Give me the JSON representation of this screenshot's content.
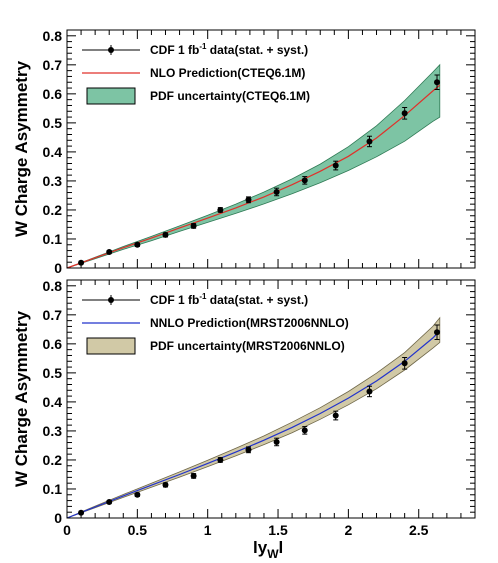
{
  "chart_data": [
    {
      "type": "line",
      "panel": "top",
      "ylabel": "W Charge Asymmetry",
      "xlim": [
        0,
        2.9
      ],
      "ylim": [
        0,
        0.82
      ],
      "x_ticks": [
        "0",
        "0.5",
        "1",
        "1.5",
        "2",
        "2.5"
      ],
      "x_tick_values": [
        0,
        0.5,
        1,
        1.5,
        2,
        2.5
      ],
      "y_ticks": [
        "0",
        "0.1",
        "0.2",
        "0.3",
        "0.4",
        "0.5",
        "0.6",
        "0.7",
        "0.8"
      ],
      "y_tick_values": [
        0,
        0.1,
        0.2,
        0.3,
        0.4,
        0.5,
        0.6,
        0.7,
        0.8
      ],
      "show_x_tick_labels": false,
      "legend": {
        "position": "top-left",
        "entries": [
          {
            "prefix": "CDF 1 fb",
            "sup": "-1",
            "suffix": " data(stat. + syst.)",
            "kind": "points"
          },
          {
            "prefix": "NLO Prediction(CTEQ6.1M)",
            "sup": "",
            "suffix": "",
            "kind": "line"
          },
          {
            "prefix": "PDF uncertainty(CTEQ6.1M)",
            "sup": "",
            "suffix": "",
            "kind": "band"
          }
        ]
      },
      "colors": {
        "line": "#e0312a",
        "band_fill": "#7dc4a4",
        "band_edge": "#2f7a55",
        "points": "#000000"
      },
      "series": [
        {
          "name": "CDF 1 fb-1 data(stat. + syst.)",
          "x": [
            0.1,
            0.3,
            0.5,
            0.7,
            0.9,
            1.09,
            1.29,
            1.49,
            1.69,
            1.91,
            2.15,
            2.4,
            2.63
          ],
          "y": [
            0.018,
            0.055,
            0.08,
            0.114,
            0.145,
            0.2,
            0.235,
            0.262,
            0.302,
            0.353,
            0.436,
            0.533,
            0.64
          ],
          "err": [
            0.004,
            0.005,
            0.006,
            0.007,
            0.008,
            0.008,
            0.01,
            0.013,
            0.013,
            0.015,
            0.018,
            0.02,
            0.025
          ]
        },
        {
          "name": "NLO Prediction(CTEQ6.1M)",
          "x": [
            0,
            0.2,
            0.4,
            0.6,
            0.8,
            1.0,
            1.2,
            1.4,
            1.6,
            1.8,
            2.0,
            2.2,
            2.4,
            2.6,
            2.65
          ],
          "y": [
            0.0,
            0.035,
            0.07,
            0.103,
            0.138,
            0.172,
            0.207,
            0.245,
            0.287,
            0.333,
            0.385,
            0.448,
            0.525,
            0.61,
            0.63
          ]
        },
        {
          "name": "PDF uncertainty(CTEQ6.1M)",
          "x": [
            0.0,
            0.2,
            0.4,
            0.6,
            0.8,
            1.0,
            1.2,
            1.4,
            1.6,
            1.8,
            2.0,
            2.2,
            2.4,
            2.6,
            2.65
          ],
          "upper": [
            0.0,
            0.037,
            0.074,
            0.109,
            0.145,
            0.182,
            0.22,
            0.262,
            0.307,
            0.358,
            0.418,
            0.49,
            0.577,
            0.675,
            0.7
          ],
          "lower": [
            0.0,
            0.032,
            0.064,
            0.094,
            0.126,
            0.157,
            0.188,
            0.221,
            0.256,
            0.294,
            0.336,
            0.383,
            0.437,
            0.505,
            0.52
          ]
        }
      ]
    },
    {
      "type": "line",
      "panel": "bottom",
      "ylabel": "W Charge Asymmetry",
      "xlabel": "ly",
      "xlabel_sub": "W",
      "xlabel_end": "l",
      "xlim": [
        0,
        2.9
      ],
      "ylim": [
        0,
        0.82
      ],
      "x_ticks": [
        "0",
        "0.5",
        "1",
        "1.5",
        "2",
        "2.5"
      ],
      "x_tick_values": [
        0,
        0.5,
        1,
        1.5,
        2,
        2.5
      ],
      "y_ticks": [
        "0",
        "0.1",
        "0.2",
        "0.3",
        "0.4",
        "0.5",
        "0.6",
        "0.7",
        "0.8"
      ],
      "y_tick_values": [
        0,
        0.1,
        0.2,
        0.3,
        0.4,
        0.5,
        0.6,
        0.7,
        0.8
      ],
      "show_x_tick_labels": true,
      "legend": {
        "position": "top-left",
        "entries": [
          {
            "prefix": "CDF 1 fb",
            "sup": "-1",
            "suffix": " data(stat. + syst.)",
            "kind": "points"
          },
          {
            "prefix": "NNLO Prediction(MRST2006NNLO)",
            "sup": "",
            "suffix": "",
            "kind": "line"
          },
          {
            "prefix": "PDF uncertainty(MRST2006NNLO)",
            "sup": "",
            "suffix": "",
            "kind": "band"
          }
        ]
      },
      "colors": {
        "line": "#2233cc",
        "band_fill": "#d1c9a6",
        "band_edge": "#6e6648",
        "points": "#000000"
      },
      "series": [
        {
          "name": "CDF 1 fb-1 data(stat. + syst.)",
          "x": [
            0.1,
            0.3,
            0.5,
            0.7,
            0.9,
            1.09,
            1.29,
            1.49,
            1.69,
            1.91,
            2.15,
            2.4,
            2.63
          ],
          "y": [
            0.018,
            0.055,
            0.08,
            0.114,
            0.145,
            0.2,
            0.235,
            0.262,
            0.302,
            0.353,
            0.436,
            0.533,
            0.64
          ],
          "err": [
            0.004,
            0.005,
            0.006,
            0.007,
            0.008,
            0.008,
            0.01,
            0.013,
            0.013,
            0.015,
            0.018,
            0.02,
            0.025
          ]
        },
        {
          "name": "NNLO Prediction(MRST2006NNLO)",
          "x": [
            0,
            0.2,
            0.4,
            0.6,
            0.8,
            1.0,
            1.2,
            1.4,
            1.6,
            1.8,
            2.0,
            2.2,
            2.4,
            2.6,
            2.65
          ],
          "y": [
            0.0,
            0.038,
            0.076,
            0.113,
            0.15,
            0.188,
            0.227,
            0.268,
            0.312,
            0.36,
            0.413,
            0.472,
            0.54,
            0.62,
            0.645
          ]
        },
        {
          "name": "PDF uncertainty(MRST2006NNLO)",
          "x": [
            0.0,
            0.2,
            0.4,
            0.6,
            0.8,
            1.0,
            1.2,
            1.4,
            1.6,
            1.8,
            2.0,
            2.2,
            2.4,
            2.6,
            2.65
          ],
          "upper": [
            0.0,
            0.041,
            0.081,
            0.12,
            0.159,
            0.199,
            0.24,
            0.283,
            0.33,
            0.38,
            0.436,
            0.499,
            0.57,
            0.66,
            0.69
          ],
          "lower": [
            0.0,
            0.035,
            0.071,
            0.106,
            0.141,
            0.177,
            0.214,
            0.253,
            0.294,
            0.34,
            0.39,
            0.445,
            0.51,
            0.585,
            0.605
          ]
        }
      ]
    }
  ]
}
